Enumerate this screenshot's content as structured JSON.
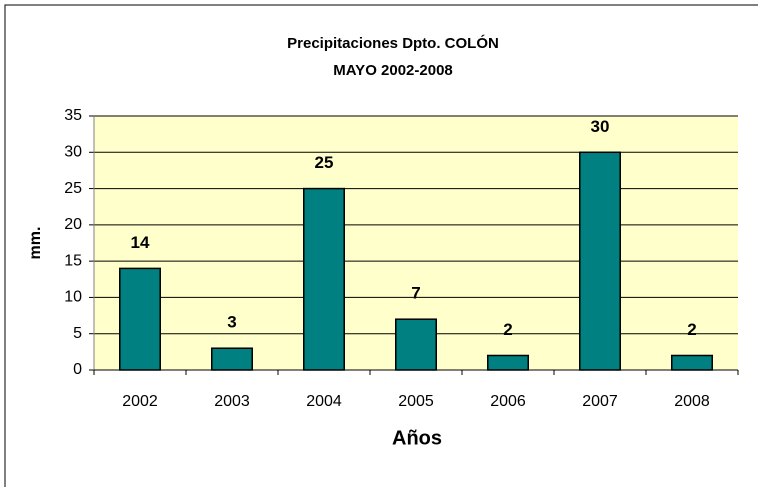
{
  "chart_data": {
    "type": "bar",
    "title": "Precipitaciones Dpto. COLÓN",
    "subtitle": "MAYO 2002-2008",
    "x_label": "Años",
    "y_label": "mm.",
    "categories": [
      "2002",
      "2003",
      "2004",
      "2005",
      "2006",
      "2007",
      "2008"
    ],
    "values": [
      14,
      3,
      25,
      7,
      2,
      30,
      2
    ],
    "color": "#008080",
    "plot_background": "#ffffcc",
    "ylim": [
      0,
      35
    ],
    "yticks": [
      0,
      5,
      10,
      15,
      20,
      25,
      30,
      35
    ],
    "grid": true
  }
}
